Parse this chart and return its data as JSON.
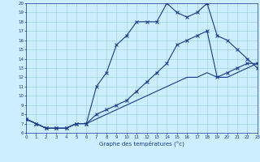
{
  "xlabel": "Graphe des températures (°c)",
  "background_color": "#cceeff",
  "line_color": "#1a3a8c",
  "hours": [
    0,
    1,
    2,
    3,
    4,
    5,
    6,
    7,
    8,
    9,
    10,
    11,
    12,
    13,
    14,
    15,
    16,
    17,
    18,
    19,
    20,
    21,
    22,
    23
  ],
  "curve1": [
    7.5,
    7.0,
    6.5,
    6.5,
    6.5,
    7.0,
    7.0,
    11.0,
    12.5,
    15.5,
    16.5,
    18.0,
    18.0,
    18.0,
    20.0,
    19.0,
    18.5,
    19.0,
    20.0,
    16.5,
    16.0,
    15.0,
    14.0,
    13.0
  ],
  "curve2": [
    7.5,
    7.0,
    6.5,
    6.5,
    6.5,
    7.0,
    7.0,
    8.0,
    8.5,
    9.0,
    9.5,
    10.5,
    11.5,
    12.5,
    13.5,
    15.5,
    16.0,
    16.5,
    17.0,
    12.0,
    12.5,
    13.0,
    13.5,
    13.5
  ],
  "curve3": [
    7.5,
    7.0,
    6.5,
    6.5,
    6.5,
    7.0,
    7.0,
    7.5,
    8.0,
    8.5,
    9.0,
    9.5,
    10.0,
    10.5,
    11.0,
    11.5,
    12.0,
    12.0,
    12.5,
    12.0,
    12.0,
    12.5,
    13.0,
    13.5
  ],
  "ylim": [
    6,
    20
  ],
  "xlim": [
    0,
    23
  ],
  "yticks": [
    6,
    7,
    8,
    9,
    10,
    11,
    12,
    13,
    14,
    15,
    16,
    17,
    18,
    19,
    20
  ],
  "xticks": [
    0,
    1,
    2,
    3,
    4,
    5,
    6,
    7,
    8,
    9,
    10,
    11,
    12,
    13,
    14,
    15,
    16,
    17,
    18,
    19,
    20,
    21,
    22,
    23
  ]
}
